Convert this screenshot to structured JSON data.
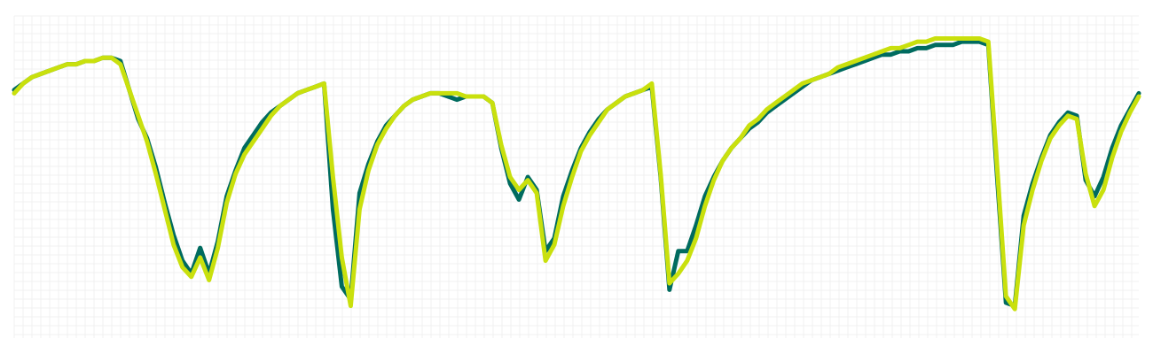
{
  "chart_data": {
    "type": "line",
    "title": "",
    "xlabel": "",
    "ylabel": "",
    "grid": true,
    "xlim": [
      0,
      127
    ],
    "ylim": [
      0,
      100
    ],
    "colors": {
      "grid": "#f1f1f1",
      "series_a": "#006b5f",
      "series_b": "#c9e00d",
      "background": "#ffffff"
    },
    "series": [
      {
        "color": "#006b5f",
        "points": [
          [
            0,
            77
          ],
          [
            1,
            79
          ],
          [
            2,
            81
          ],
          [
            3,
            82
          ],
          [
            4,
            83
          ],
          [
            5,
            84
          ],
          [
            6,
            85
          ],
          [
            7,
            85
          ],
          [
            8,
            86
          ],
          [
            9,
            86
          ],
          [
            10,
            87
          ],
          [
            11,
            87
          ],
          [
            12,
            86
          ],
          [
            13,
            77
          ],
          [
            14,
            68
          ],
          [
            15,
            62
          ],
          [
            16,
            53
          ],
          [
            17,
            42
          ],
          [
            18,
            32
          ],
          [
            19,
            24
          ],
          [
            20,
            20
          ],
          [
            21,
            28
          ],
          [
            22,
            20
          ],
          [
            23,
            30
          ],
          [
            24,
            44
          ],
          [
            25,
            52
          ],
          [
            26,
            59
          ],
          [
            27,
            63
          ],
          [
            28,
            67
          ],
          [
            29,
            70
          ],
          [
            30,
            72
          ],
          [
            31,
            74
          ],
          [
            32,
            76
          ],
          [
            33,
            77
          ],
          [
            34,
            78
          ],
          [
            35,
            79
          ],
          [
            36,
            40
          ],
          [
            37,
            16
          ],
          [
            38,
            12
          ],
          [
            39,
            45
          ],
          [
            40,
            54
          ],
          [
            41,
            61
          ],
          [
            42,
            66
          ],
          [
            43,
            69
          ],
          [
            44,
            72
          ],
          [
            45,
            74
          ],
          [
            46,
            75
          ],
          [
            47,
            76
          ],
          [
            48,
            76
          ],
          [
            49,
            75
          ],
          [
            50,
            74
          ],
          [
            51,
            75
          ],
          [
            52,
            75
          ],
          [
            53,
            75
          ],
          [
            54,
            73
          ],
          [
            55,
            59
          ],
          [
            56,
            48
          ],
          [
            57,
            43
          ],
          [
            58,
            50
          ],
          [
            59,
            46
          ],
          [
            60,
            27
          ],
          [
            61,
            31
          ],
          [
            62,
            44
          ],
          [
            63,
            52
          ],
          [
            64,
            59
          ],
          [
            65,
            64
          ],
          [
            66,
            68
          ],
          [
            67,
            71
          ],
          [
            68,
            73
          ],
          [
            69,
            75
          ],
          [
            70,
            76
          ],
          [
            71,
            77
          ],
          [
            72,
            78
          ],
          [
            73,
            50
          ],
          [
            74,
            15
          ],
          [
            75,
            27
          ],
          [
            76,
            27
          ],
          [
            77,
            35
          ],
          [
            78,
            44
          ],
          [
            79,
            50
          ],
          [
            80,
            55
          ],
          [
            81,
            59
          ],
          [
            82,
            62
          ],
          [
            83,
            65
          ],
          [
            84,
            67
          ],
          [
            85,
            70
          ],
          [
            86,
            72
          ],
          [
            87,
            74
          ],
          [
            88,
            76
          ],
          [
            89,
            78
          ],
          [
            90,
            80
          ],
          [
            91,
            81
          ],
          [
            92,
            82
          ],
          [
            93,
            83
          ],
          [
            94,
            84
          ],
          [
            95,
            85
          ],
          [
            96,
            86
          ],
          [
            97,
            87
          ],
          [
            98,
            88
          ],
          [
            99,
            88
          ],
          [
            100,
            89
          ],
          [
            101,
            89
          ],
          [
            102,
            90
          ],
          [
            103,
            90
          ],
          [
            104,
            91
          ],
          [
            105,
            91
          ],
          [
            106,
            91
          ],
          [
            107,
            92
          ],
          [
            108,
            92
          ],
          [
            109,
            92
          ],
          [
            110,
            91
          ],
          [
            111,
            50
          ],
          [
            112,
            11
          ],
          [
            113,
            10
          ],
          [
            114,
            38
          ],
          [
            115,
            48
          ],
          [
            116,
            56
          ],
          [
            117,
            63
          ],
          [
            118,
            67
          ],
          [
            119,
            70
          ],
          [
            120,
            69
          ],
          [
            121,
            49
          ],
          [
            122,
            44
          ],
          [
            123,
            50
          ],
          [
            124,
            59
          ],
          [
            125,
            66
          ],
          [
            126,
            71
          ],
          [
            127,
            76
          ]
        ]
      },
      {
        "color": "#c9e00d",
        "points": [
          [
            0,
            76
          ],
          [
            1,
            79
          ],
          [
            2,
            81
          ],
          [
            3,
            82
          ],
          [
            4,
            83
          ],
          [
            5,
            84
          ],
          [
            6,
            85
          ],
          [
            7,
            85
          ],
          [
            8,
            86
          ],
          [
            9,
            86
          ],
          [
            10,
            87
          ],
          [
            11,
            87
          ],
          [
            12,
            85
          ],
          [
            13,
            77
          ],
          [
            14,
            69
          ],
          [
            15,
            61
          ],
          [
            16,
            51
          ],
          [
            17,
            40
          ],
          [
            18,
            29
          ],
          [
            19,
            22
          ],
          [
            20,
            19
          ],
          [
            21,
            25
          ],
          [
            22,
            18
          ],
          [
            23,
            28
          ],
          [
            24,
            42
          ],
          [
            25,
            51
          ],
          [
            26,
            57
          ],
          [
            27,
            61
          ],
          [
            28,
            65
          ],
          [
            29,
            69
          ],
          [
            30,
            72
          ],
          [
            31,
            74
          ],
          [
            32,
            76
          ],
          [
            33,
            77
          ],
          [
            34,
            78
          ],
          [
            35,
            79
          ],
          [
            36,
            50
          ],
          [
            37,
            25
          ],
          [
            38,
            10
          ],
          [
            39,
            40
          ],
          [
            40,
            52
          ],
          [
            41,
            60
          ],
          [
            42,
            65
          ],
          [
            43,
            69
          ],
          [
            44,
            72
          ],
          [
            45,
            74
          ],
          [
            46,
            75
          ],
          [
            47,
            76
          ],
          [
            48,
            76
          ],
          [
            49,
            76
          ],
          [
            50,
            76
          ],
          [
            51,
            75
          ],
          [
            52,
            75
          ],
          [
            53,
            75
          ],
          [
            54,
            73
          ],
          [
            55,
            60
          ],
          [
            56,
            50
          ],
          [
            57,
            46
          ],
          [
            58,
            49
          ],
          [
            59,
            45
          ],
          [
            60,
            24
          ],
          [
            61,
            29
          ],
          [
            62,
            41
          ],
          [
            63,
            50
          ],
          [
            64,
            58
          ],
          [
            65,
            63
          ],
          [
            66,
            67
          ],
          [
            67,
            71
          ],
          [
            68,
            73
          ],
          [
            69,
            75
          ],
          [
            70,
            76
          ],
          [
            71,
            77
          ],
          [
            72,
            79
          ],
          [
            73,
            51
          ],
          [
            74,
            17
          ],
          [
            75,
            20
          ],
          [
            76,
            24
          ],
          [
            77,
            31
          ],
          [
            78,
            41
          ],
          [
            79,
            49
          ],
          [
            80,
            55
          ],
          [
            81,
            59
          ],
          [
            82,
            62
          ],
          [
            83,
            66
          ],
          [
            84,
            68
          ],
          [
            85,
            71
          ],
          [
            86,
            73
          ],
          [
            87,
            75
          ],
          [
            88,
            77
          ],
          [
            89,
            79
          ],
          [
            90,
            80
          ],
          [
            91,
            81
          ],
          [
            92,
            82
          ],
          [
            93,
            84
          ],
          [
            94,
            85
          ],
          [
            95,
            86
          ],
          [
            96,
            87
          ],
          [
            97,
            88
          ],
          [
            98,
            89
          ],
          [
            99,
            90
          ],
          [
            100,
            90
          ],
          [
            101,
            91
          ],
          [
            102,
            92
          ],
          [
            103,
            92
          ],
          [
            104,
            93
          ],
          [
            105,
            93
          ],
          [
            106,
            93
          ],
          [
            107,
            93
          ],
          [
            108,
            93
          ],
          [
            109,
            93
          ],
          [
            110,
            92
          ],
          [
            111,
            53
          ],
          [
            112,
            13
          ],
          [
            113,
            9
          ],
          [
            114,
            35
          ],
          [
            115,
            46
          ],
          [
            116,
            55
          ],
          [
            117,
            62
          ],
          [
            118,
            66
          ],
          [
            119,
            69
          ],
          [
            120,
            68
          ],
          [
            121,
            51
          ],
          [
            122,
            41
          ],
          [
            123,
            46
          ],
          [
            124,
            56
          ],
          [
            125,
            64
          ],
          [
            126,
            70
          ],
          [
            127,
            75
          ]
        ]
      }
    ]
  }
}
